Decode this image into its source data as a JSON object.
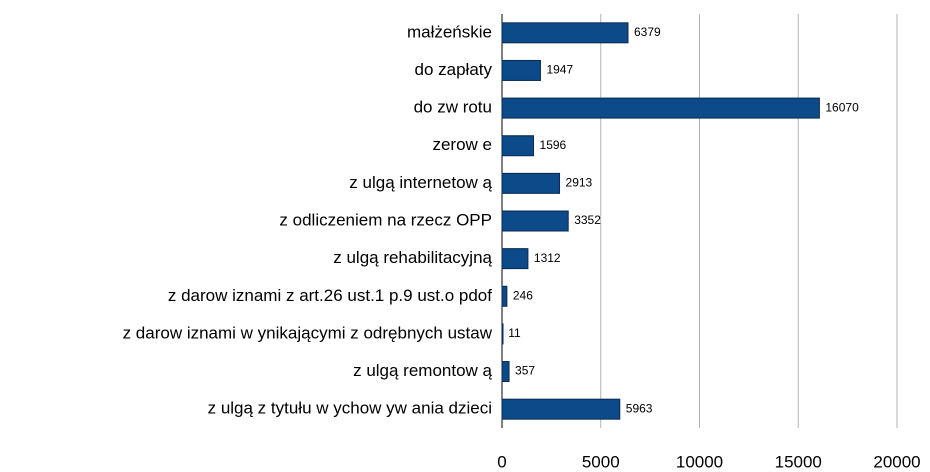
{
  "chart_data": {
    "type": "hbar",
    "categories": [
      "małżeńskie",
      "do zapłaty",
      "do zw rotu",
      "zerow e",
      "z ulgą internetow ą",
      "z odliczeniem na rzecz OPP",
      "z ulgą rehabilitacyjną",
      "z darow iznami z art.26 ust.1 p.9 ust.o pdof",
      "z darow iznami w ynikającymi z odrębnych ustaw",
      "z ulgą remontow ą",
      "z ulgą z tytułu w ychow yw ania dzieci"
    ],
    "values": [
      6379,
      1947,
      16070,
      1596,
      2913,
      3352,
      1312,
      246,
      11,
      357,
      5963
    ],
    "color": "#0d4a8a",
    "xlim": [
      0,
      20000
    ],
    "xticks": [
      0,
      5000,
      10000,
      15000,
      20000
    ],
    "grid": true
  }
}
